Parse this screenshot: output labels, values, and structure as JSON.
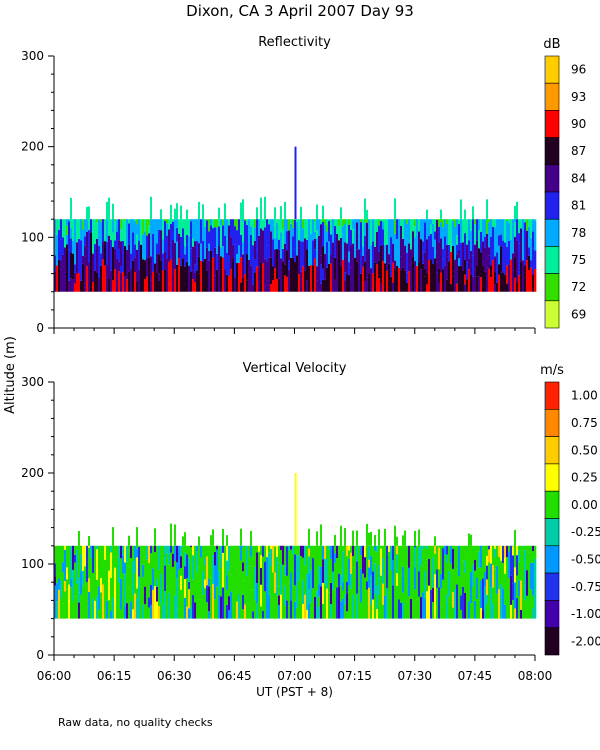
{
  "title": "Dixon, CA   3 April 2007   Day   93",
  "footnote": "Raw data, no quality checks",
  "shared_ylabel": "Altitude (m)",
  "chart_data": [
    {
      "type": "heatmap",
      "title": "Reflectivity",
      "ylabel": "Altitude (m)",
      "ylim": [
        0,
        300
      ],
      "yticks": [
        0,
        100,
        200,
        300
      ],
      "x_ticks": [
        "06:00",
        "06:15",
        "06:30",
        "06:45",
        "07:00",
        "07:15",
        "07:30",
        "07:45",
        "08:00"
      ],
      "xlim": [
        "06:00",
        "08:00"
      ],
      "xlabel": "UT  (PST + 8)",
      "data_altitude_range": [
        40,
        120
      ],
      "colorbar": {
        "unit": "dB",
        "labels": [
          "96",
          "93",
          "90",
          "87",
          "84",
          "81",
          "78",
          "75",
          "72",
          "69"
        ],
        "colors": [
          "#ffcc00",
          "#ff9900",
          "#ff0000",
          "#220022",
          "#440088",
          "#2222ee",
          "#00aaff",
          "#00ee99",
          "#33dd00",
          "#ccff33"
        ]
      }
    },
    {
      "type": "heatmap",
      "title": "Vertical Velocity",
      "ylabel": "Altitude (m)",
      "ylim": [
        0,
        300
      ],
      "yticks": [
        0,
        100,
        200,
        300
      ],
      "x_ticks": [
        "06:00",
        "06:15",
        "06:30",
        "06:45",
        "07:00",
        "07:15",
        "07:30",
        "07:45",
        "08:00"
      ],
      "xlim": [
        "06:00",
        "08:00"
      ],
      "xlabel": "UT  (PST + 8)",
      "data_altitude_range": [
        40,
        120
      ],
      "colorbar": {
        "unit": "m/s",
        "labels": [
          "1.00",
          "0.75",
          "0.50",
          "0.25",
          "0.00",
          "-0.25",
          "-0.50",
          "-0.75",
          "-1.00",
          "-2.00"
        ],
        "colors": [
          "#ff2200",
          "#ff8800",
          "#ffcc00",
          "#ffff00",
          "#22dd00",
          "#00ccaa",
          "#0099ff",
          "#2233ee",
          "#4400aa",
          "#220022"
        ]
      }
    }
  ]
}
